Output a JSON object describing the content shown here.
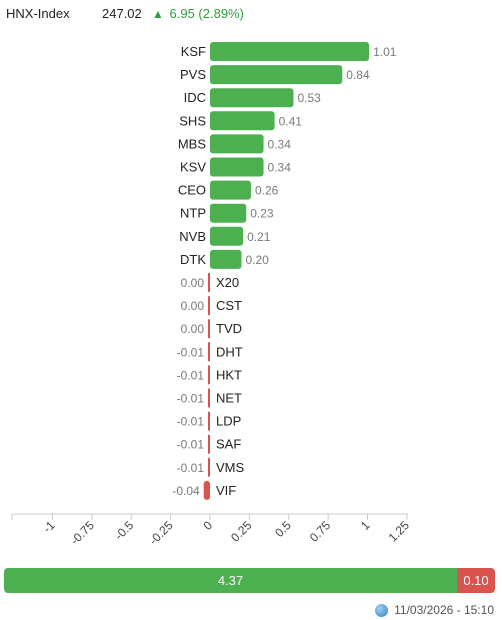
{
  "header": {
    "index_name": "HNX-Index",
    "index_value": "247.02",
    "change_arrow": "▲",
    "change_text": "6.95 (2.89%)"
  },
  "colors": {
    "up": "#4caf50",
    "down": "#d9534f",
    "axis": "#cccccc"
  },
  "chart_data": {
    "type": "bar",
    "orientation": "horizontal",
    "categories": [
      "KSF",
      "PVS",
      "IDC",
      "SHS",
      "MBS",
      "KSV",
      "CEO",
      "NTP",
      "NVB",
      "DTK",
      "X20",
      "CST",
      "TVD",
      "DHT",
      "HKT",
      "NET",
      "LDP",
      "SAF",
      "VMS",
      "VIF"
    ],
    "values": [
      1.01,
      0.84,
      0.53,
      0.41,
      0.34,
      0.34,
      0.26,
      0.23,
      0.21,
      0.2,
      0.0,
      0.0,
      0.0,
      -0.01,
      -0.01,
      -0.01,
      -0.01,
      -0.01,
      -0.01,
      -0.04
    ],
    "value_labels": [
      "1.01",
      "0.84",
      "0.53",
      "0.41",
      "0.34",
      "0.34",
      "0.26",
      "0.23",
      "0.21",
      "0.20",
      "0.00",
      "0.00",
      "0.00",
      "-0.01",
      "-0.01",
      "-0.01",
      "-0.01",
      "-0.01",
      "-0.01",
      "-0.04"
    ],
    "xlim": [
      -1.25,
      1.25
    ],
    "xticks": [
      -1,
      -0.75,
      -0.5,
      -0.25,
      0,
      0.25,
      0.5,
      0.75,
      1,
      1.25
    ],
    "xtick_labels": [
      "-1",
      "-0.75",
      "-0.5",
      "-0.25",
      "0",
      "0.25",
      "0.5",
      "0.75",
      "1",
      "1.25"
    ],
    "grid": false
  },
  "breadth": {
    "up_value": 4.37,
    "down_value": 0.1,
    "up_label": "4.37",
    "down_label": "0.10"
  },
  "footer": {
    "timestamp": "11/03/2026 - 15:10"
  }
}
